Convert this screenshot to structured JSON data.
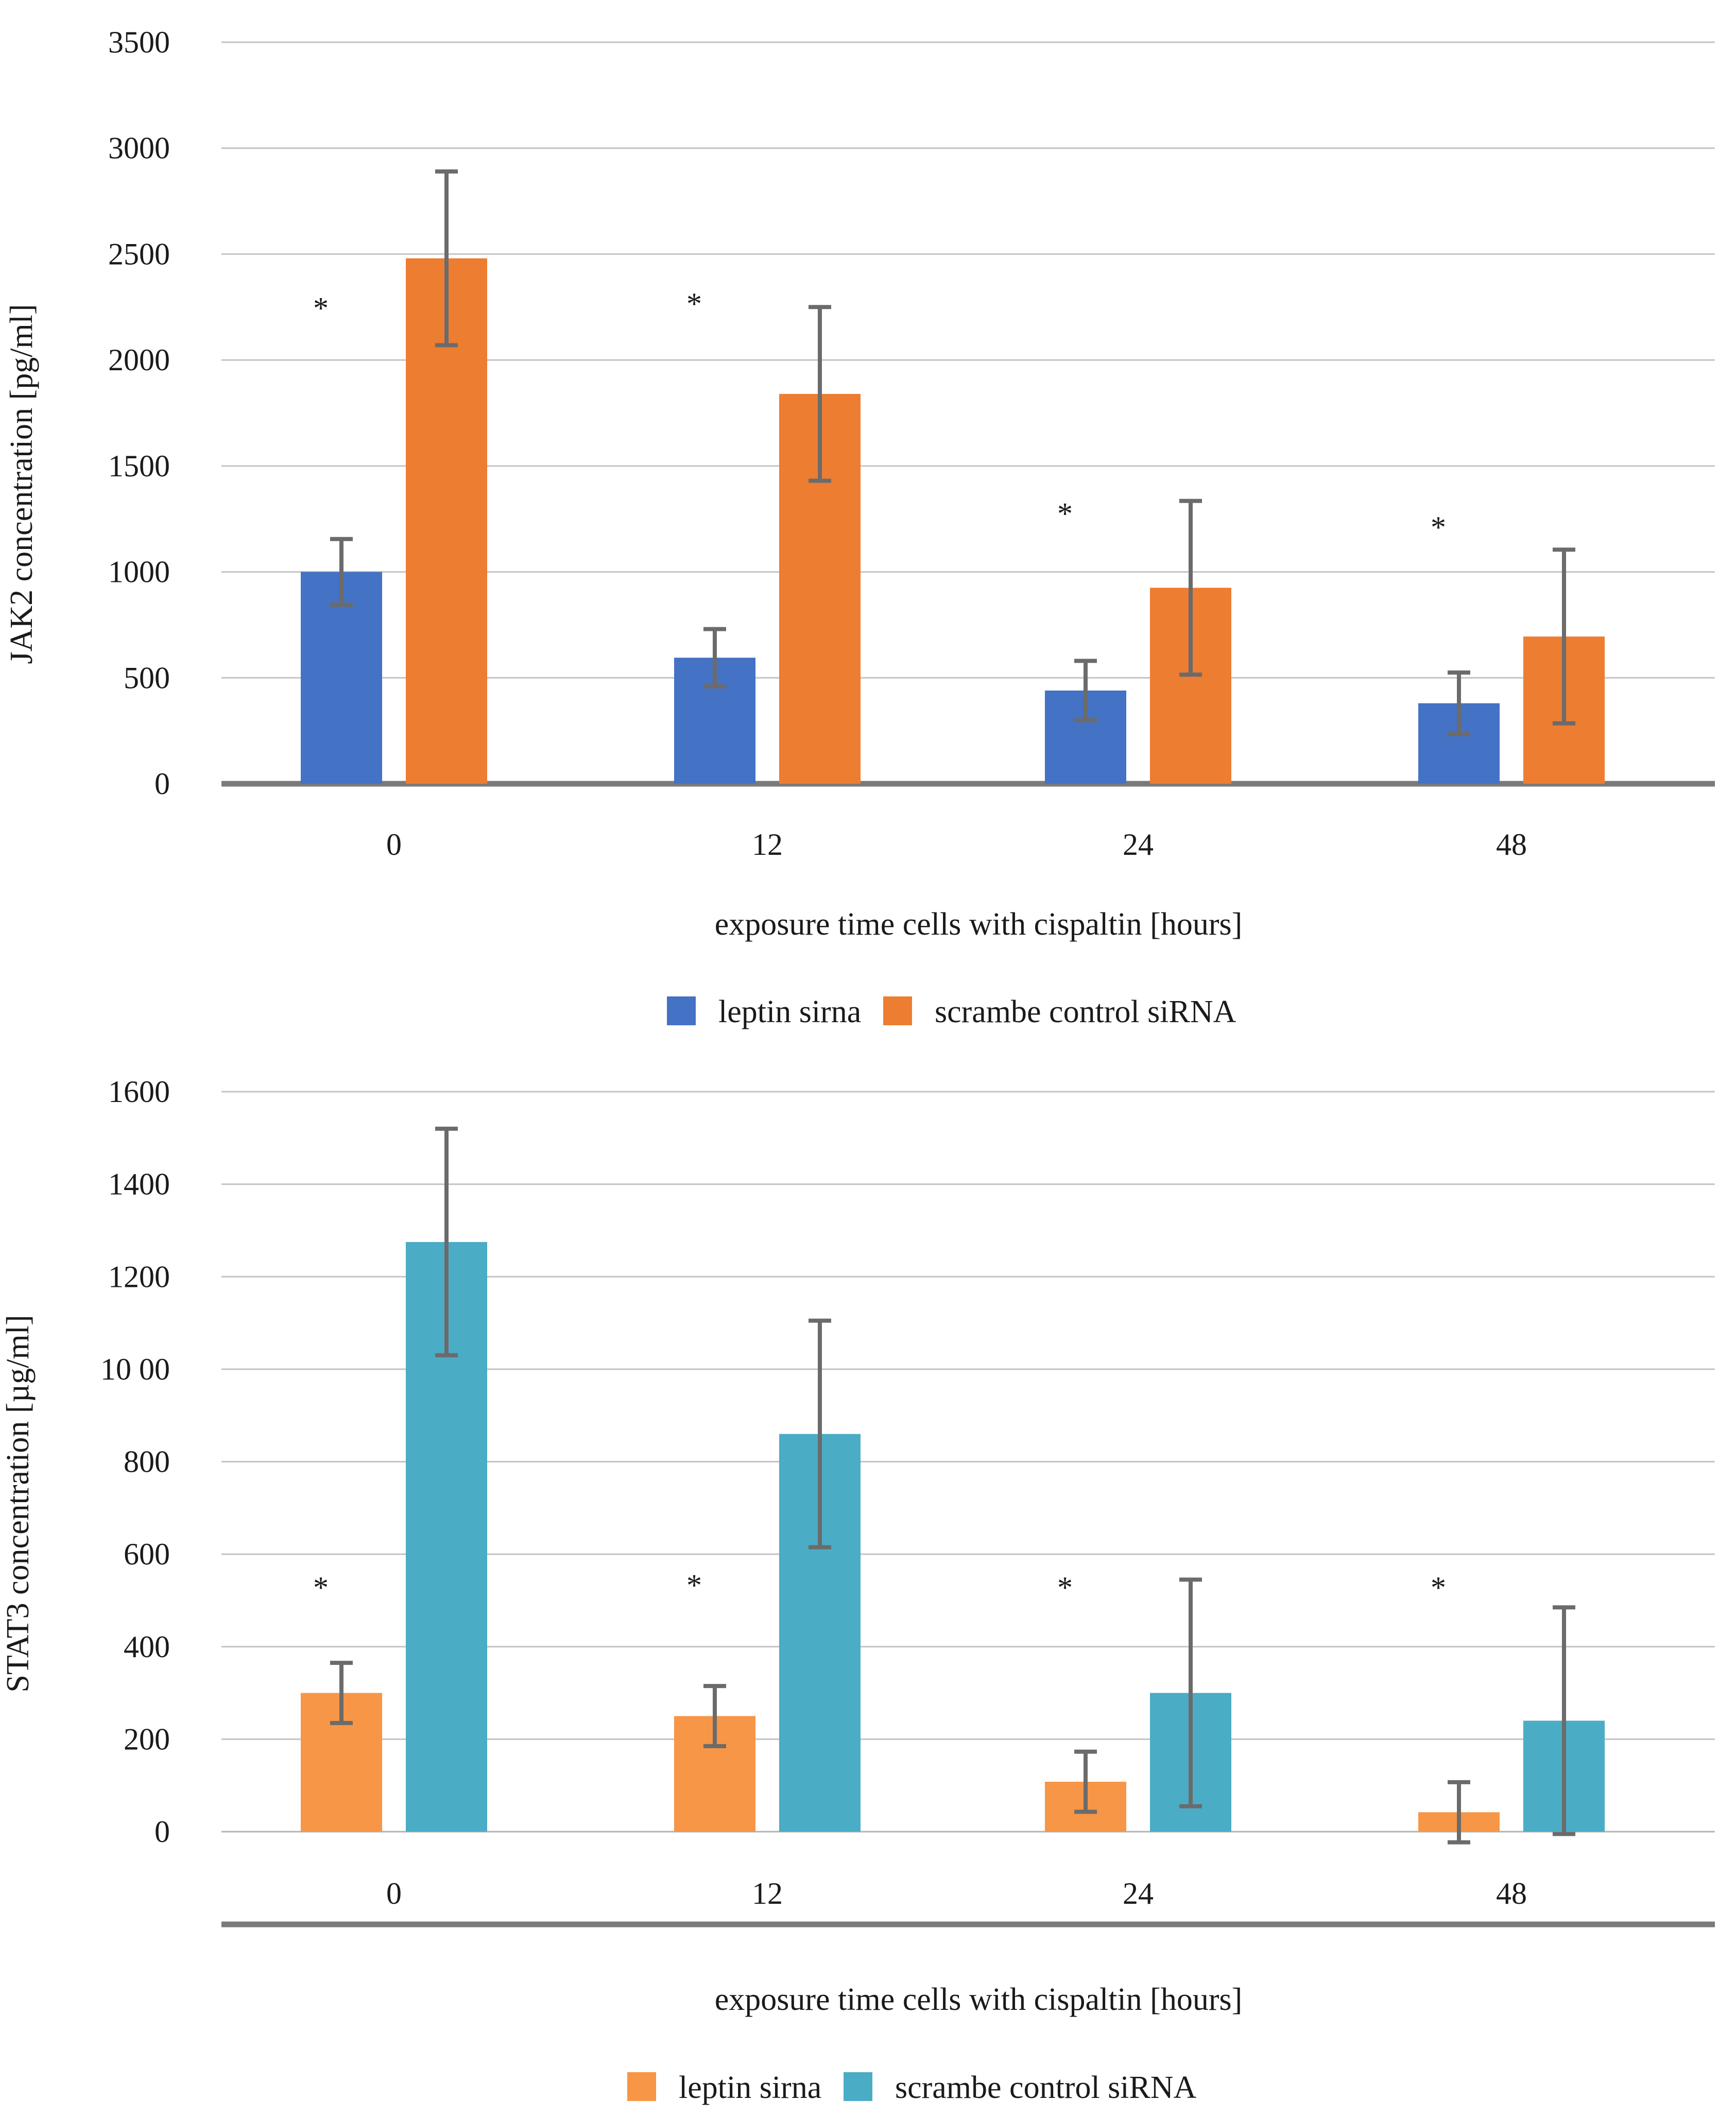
{
  "chart_data": [
    {
      "type": "bar",
      "title": "",
      "xlabel": "exposure time cells with cispaltin [hours]",
      "ylabel": "JAK2 concentration [pg/ml]",
      "categories": [
        "0",
        "12",
        "24",
        "48"
      ],
      "ylim": [
        0,
        3500
      ],
      "yticks": [
        0,
        500,
        1000,
        1500,
        2000,
        2500,
        3000,
        3500
      ],
      "ytick_labels": [
        "0",
        "500",
        "1000",
        "1500",
        "2000",
        "2500",
        "3000",
        "3500"
      ],
      "grid": true,
      "legend_position": "bottom",
      "series": [
        {
          "name": "leptin sirna",
          "color": "#4472C4",
          "values": [
            1000,
            595,
            440,
            380
          ],
          "errors": [
            155,
            135,
            140,
            145
          ]
        },
        {
          "name": "scrambe control siRNA",
          "color": "#ED7D31",
          "values": [
            2480,
            1840,
            925,
            695
          ],
          "errors": [
            410,
            410,
            410,
            410
          ]
        }
      ],
      "annotations": [
        {
          "category": "0",
          "text": "*",
          "y": 2250
        },
        {
          "category": "12",
          "text": "*",
          "y": 2270
        },
        {
          "category": "24",
          "text": "*",
          "y": 1280
        },
        {
          "category": "48",
          "text": "*",
          "y": 1215
        }
      ]
    },
    {
      "type": "bar",
      "title": "",
      "xlabel": "exposure time cells with cispaltin [hours]",
      "ylabel": "STAT3 concentration [µg/ml]",
      "categories": [
        "0",
        "12",
        "24",
        "48"
      ],
      "ylim": [
        0,
        1600
      ],
      "yticks": [
        0,
        200,
        400,
        600,
        800,
        1000,
        1200,
        1400,
        1600
      ],
      "ytick_labels": [
        "0",
        "200",
        "400",
        "600",
        "800",
        "10 00",
        "1200",
        "1400",
        "1600"
      ],
      "grid": true,
      "legend_position": "bottom",
      "series": [
        {
          "name": "leptin sirna",
          "color": "#F79646",
          "values": [
            300,
            250,
            108,
            42
          ],
          "errors": [
            65,
            65,
            65,
            65
          ]
        },
        {
          "name": "scrambe control siRNA",
          "color": "#4BACC6",
          "values": [
            1275,
            860,
            300,
            240
          ],
          "errors": [
            245,
            245,
            245,
            245
          ]
        }
      ],
      "annotations": [
        {
          "category": "0",
          "text": "*",
          "y": 530
        },
        {
          "category": "12",
          "text": "*",
          "y": 535
        },
        {
          "category": "24",
          "text": "*",
          "y": 530
        },
        {
          "category": "48",
          "text": "*",
          "y": 530
        }
      ]
    }
  ]
}
